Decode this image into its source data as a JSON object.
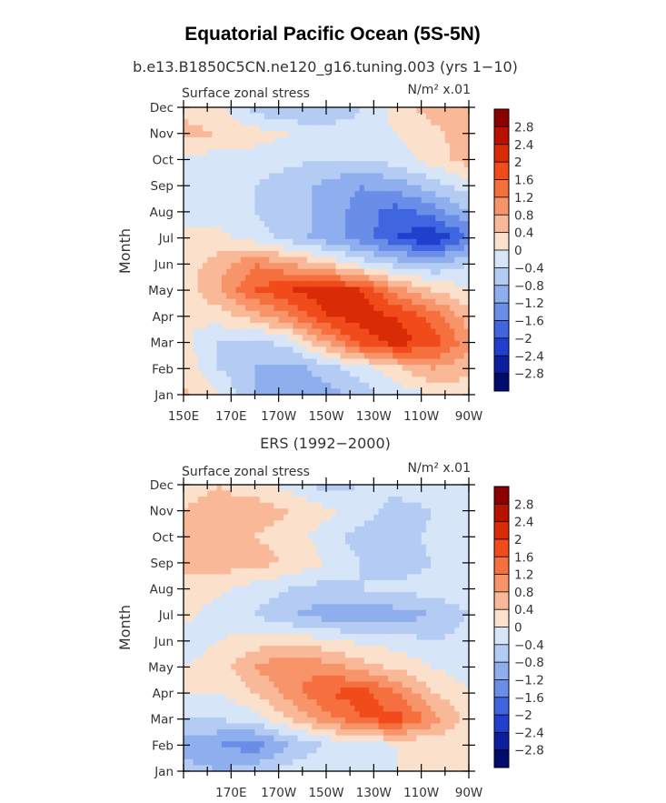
{
  "page": {
    "title": "Equatorial Pacific Ocean (5S-5N)",
    "subtitle": "b.e13.B1850C5CN.ne120_g16.tuning.003 (yrs 1−10)"
  },
  "colorbar": {
    "labels": [
      "2.8",
      "2.4",
      "2",
      "1.6",
      "1.2",
      "0.8",
      "0.4",
      "0",
      "−0.4",
      "−0.8",
      "−1.2",
      "−1.6",
      "−2",
      "−2.4",
      "−2.8"
    ],
    "colors": [
      "#8b0000",
      "#b81100",
      "#d92b06",
      "#f14a1b",
      "#f6703f",
      "#f8946a",
      "#f9b897",
      "#fbe0cc",
      "#d6e6f8",
      "#b4ccf3",
      "#8faeee",
      "#6a8ee8",
      "#3f66e0",
      "#1f3fcc",
      "#0b1f9e",
      "#000b6e"
    ]
  },
  "chart_data": [
    {
      "type": "heatmap",
      "panel_title": "",
      "left_label": "Surface zonal stress",
      "right_label": "N/m² x.01",
      "ylabel": "Month",
      "months": [
        "Jan",
        "Feb",
        "Mar",
        "Apr",
        "May",
        "Jun",
        "Jul",
        "Aug",
        "Sep",
        "Oct",
        "Nov",
        "Dec"
      ],
      "xticks": [
        "150E",
        "170E",
        "170W",
        "150W",
        "130W",
        "110W",
        "90W"
      ],
      "xrange_lon_east": [
        150,
        270
      ],
      "levels": [
        -2.8,
        -2.4,
        -2.0,
        -1.6,
        -1.2,
        -0.8,
        -0.4,
        0,
        0.4,
        0.8,
        1.2,
        1.6,
        2.0,
        2.4,
        2.8
      ],
      "lon": [
        150,
        165,
        180,
        195,
        210,
        225,
        240,
        255,
        270
      ],
      "values": [
        [
          0.5,
          0.0,
          -0.8,
          -1.2,
          -1.0,
          -0.6,
          -0.2,
          0.0,
          0.2
        ],
        [
          0.3,
          -0.4,
          -0.8,
          -1.0,
          -0.6,
          -0.2,
          0.3,
          0.8,
          0.5
        ],
        [
          0.1,
          -0.4,
          -0.6,
          -0.2,
          0.8,
          1.8,
          2.2,
          1.8,
          1.0
        ],
        [
          0.0,
          0.2,
          0.6,
          1.2,
          2.0,
          2.2,
          2.0,
          1.4,
          0.6
        ],
        [
          0.2,
          0.8,
          1.6,
          2.0,
          2.2,
          2.0,
          1.0,
          0.4,
          0.0
        ],
        [
          0.2,
          0.6,
          1.2,
          0.8,
          0.4,
          -0.2,
          -0.6,
          -0.8,
          -0.4
        ],
        [
          0.0,
          0.1,
          -0.2,
          -0.6,
          -1.0,
          -1.4,
          -2.0,
          -2.4,
          -1.6
        ],
        [
          0.0,
          -0.2,
          -0.4,
          -0.6,
          -0.9,
          -1.4,
          -1.8,
          -1.4,
          -0.8
        ],
        [
          -0.2,
          -0.3,
          -0.4,
          -0.6,
          -0.9,
          -1.2,
          -1.0,
          -0.6,
          -0.2
        ],
        [
          -0.1,
          -0.2,
          -0.2,
          -0.3,
          -0.4,
          -0.4,
          -0.2,
          0.2,
          0.6
        ],
        [
          0.5,
          0.4,
          0.2,
          0.0,
          -0.2,
          -0.2,
          0.0,
          0.3,
          0.6
        ],
        [
          0.3,
          0.1,
          -0.6,
          -0.9,
          -0.8,
          -0.4,
          0.2,
          0.6,
          0.5
        ]
      ]
    },
    {
      "type": "heatmap",
      "panel_title": "ERS (1992−2000)",
      "left_label": "Surface zonal stress",
      "right_label": "N/m² x.01",
      "ylabel": "Month",
      "months": [
        "Jan",
        "Feb",
        "Mar",
        "Apr",
        "May",
        "Jun",
        "Jul",
        "Aug",
        "Sep",
        "Oct",
        "Nov",
        "Dec"
      ],
      "xticks": [
        "170E",
        "170W",
        "150W",
        "130W",
        "110W",
        "90W"
      ],
      "xrange_lon_east": [
        150,
        270
      ],
      "levels": [
        -2.8,
        -2.4,
        -2.0,
        -1.6,
        -1.2,
        -0.8,
        -0.4,
        0,
        0.4,
        0.8,
        1.2,
        1.6,
        2.0,
        2.4,
        2.8
      ],
      "lon": [
        150,
        165,
        180,
        195,
        210,
        225,
        240,
        255,
        270
      ],
      "values": [
        [
          -0.6,
          -0.8,
          -0.6,
          -0.2,
          0.0,
          0.0,
          0.0,
          0.0,
          0.0
        ],
        [
          -1.0,
          -1.2,
          -1.4,
          -0.8,
          -0.4,
          -0.2,
          0.0,
          0.1,
          0.0
        ],
        [
          -0.4,
          -0.4,
          -0.2,
          0.4,
          1.0,
          1.6,
          1.8,
          1.0,
          0.2
        ],
        [
          0.0,
          0.0,
          0.4,
          1.0,
          1.6,
          1.8,
          1.2,
          0.4,
          0.0
        ],
        [
          0.0,
          0.2,
          0.8,
          1.2,
          1.0,
          0.6,
          0.3,
          0.0,
          -0.2
        ],
        [
          -0.2,
          0.0,
          0.2,
          0.3,
          0.1,
          -0.1,
          -0.2,
          -0.4,
          -0.2
        ],
        [
          0.1,
          -0.2,
          -0.4,
          -0.8,
          -1.0,
          -1.2,
          -1.0,
          -0.8,
          -0.4
        ],
        [
          0.3,
          0.1,
          -0.2,
          -0.4,
          -0.6,
          -0.4,
          -0.3,
          -0.2,
          -0.1
        ],
        [
          0.5,
          0.6,
          0.6,
          0.3,
          0.0,
          -0.4,
          -0.6,
          -0.4,
          -0.2
        ],
        [
          0.5,
          0.5,
          0.4,
          0.2,
          -0.2,
          -0.6,
          -0.6,
          -0.3,
          -0.1
        ],
        [
          0.4,
          0.5,
          0.6,
          0.4,
          0.1,
          -0.2,
          -0.6,
          -0.4,
          -0.2
        ],
        [
          0.3,
          0.4,
          0.2,
          -0.2,
          -0.6,
          -0.4,
          -0.2,
          -0.1,
          0.0
        ]
      ]
    }
  ]
}
